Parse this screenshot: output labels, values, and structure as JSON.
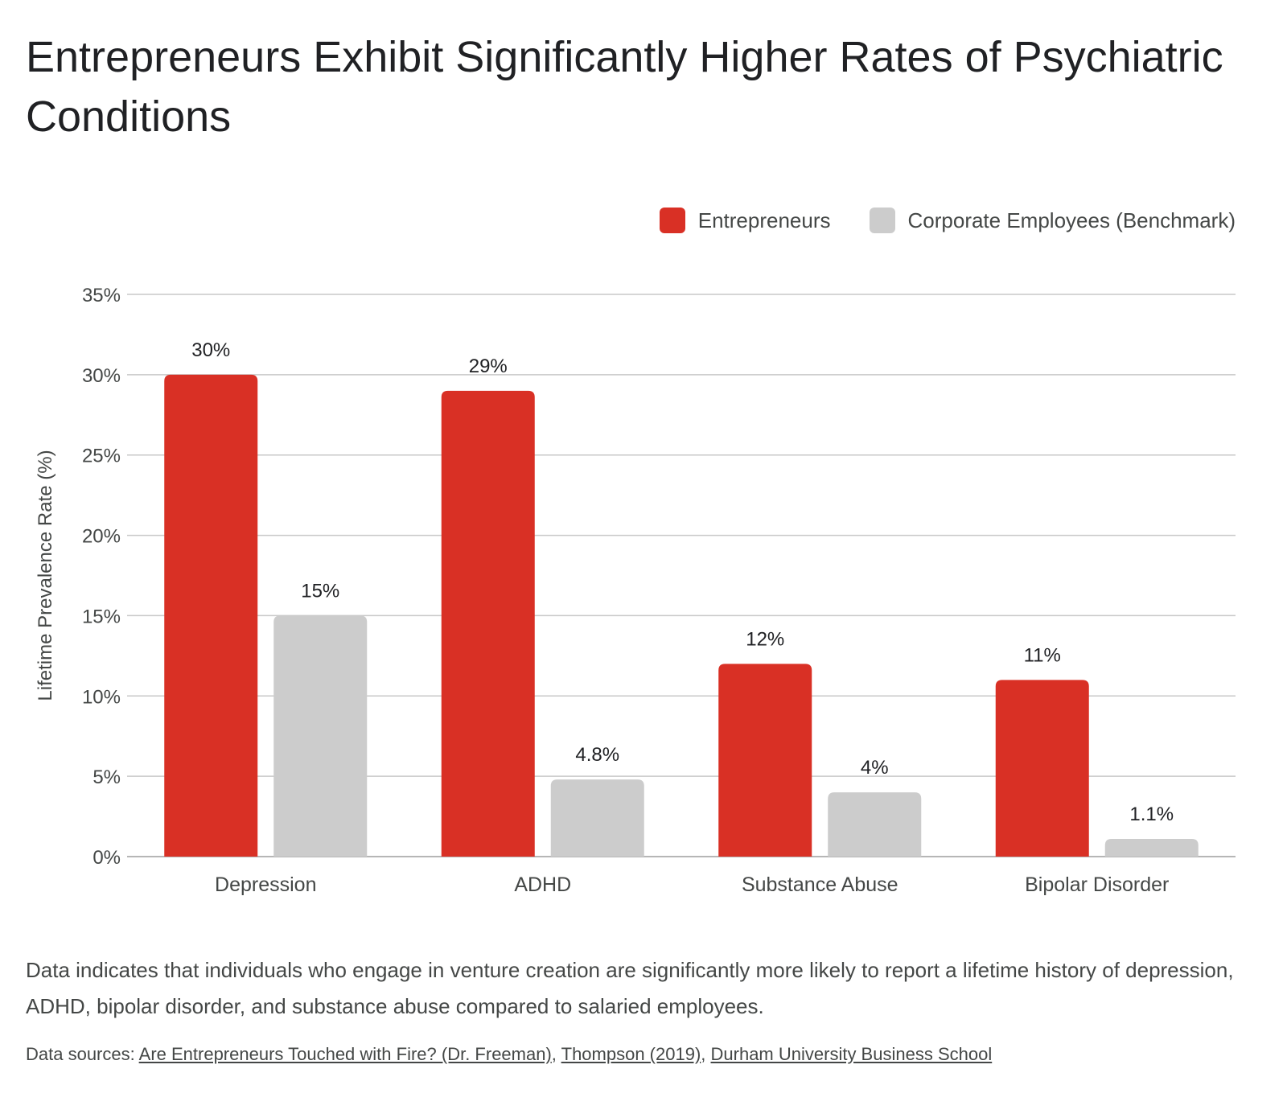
{
  "title": "Entrepreneurs Exhibit Significantly Higher Rates of Psychiatric Conditions",
  "description": "Data indicates that individuals who engage in venture creation are significantly more likely to report a lifetime history of depression, ADHD, bipolar disorder, and substance abuse compared to salaried employees.",
  "sources": {
    "prefix": "Data sources: ",
    "links": [
      "Are Entrepreneurs Touched with Fire? (Dr. Freeman)",
      "Thompson (2019)",
      "Durham University Business School"
    ],
    "separator": ", "
  },
  "colors": {
    "entrepreneurs": "#d93025",
    "corporate": "#cccccc",
    "grid": "#c8c8c8",
    "axis_text": "#444746"
  },
  "chart_data": {
    "type": "bar",
    "title": "Entrepreneurs Exhibit Significantly Higher Rates of Psychiatric Conditions",
    "xlabel": "",
    "ylabel": "Lifetime Prevalence Rate (%)",
    "ylim": [
      0,
      35
    ],
    "yticks": [
      "0%",
      "5%",
      "10%",
      "15%",
      "20%",
      "25%",
      "30%",
      "35%"
    ],
    "grid": true,
    "legend_position": "top-right",
    "categories": [
      "Depression",
      "ADHD",
      "Substance Abuse",
      "Bipolar Disorder"
    ],
    "series": [
      {
        "name": "Entrepreneurs",
        "values": [
          30,
          29,
          12,
          11
        ],
        "labels": [
          "30%",
          "29%",
          "12%",
          "11%"
        ]
      },
      {
        "name": "Corporate Employees (Benchmark)",
        "values": [
          15,
          4.8,
          4,
          1.1
        ],
        "labels": [
          "15%",
          "4.8%",
          "4%",
          "1.1%"
        ]
      }
    ]
  }
}
